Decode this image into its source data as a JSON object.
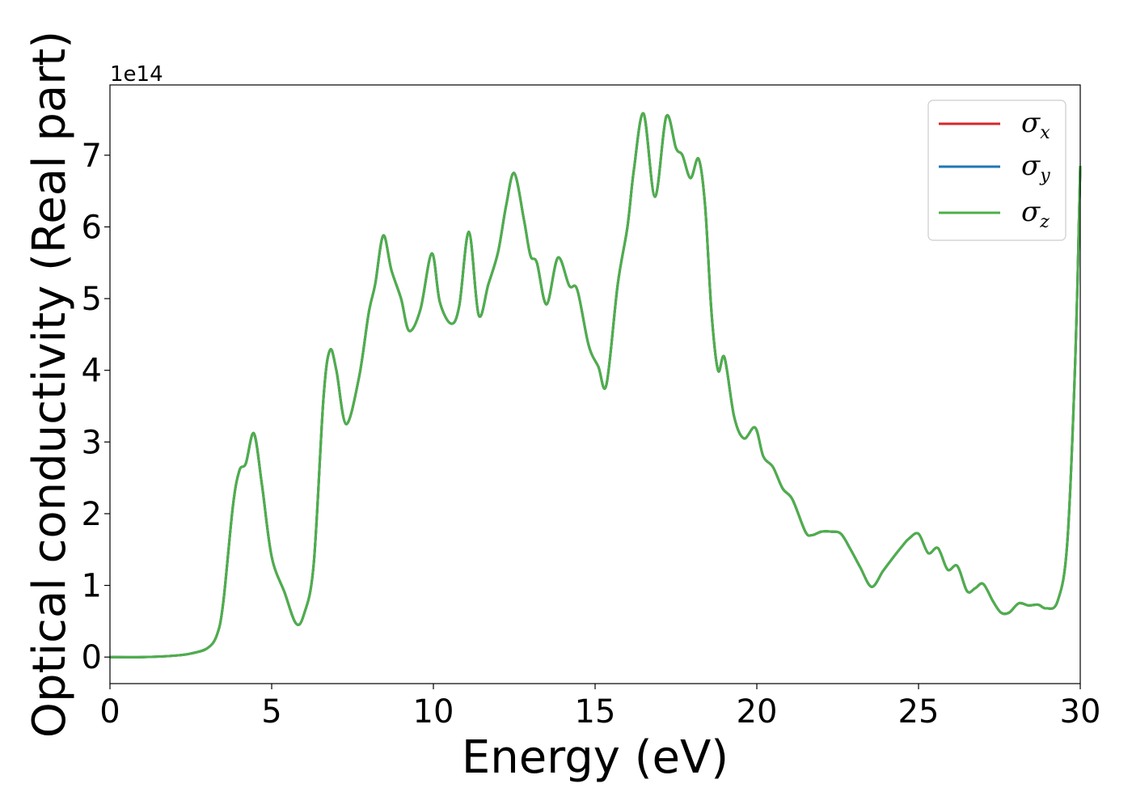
{
  "chart_data": {
    "type": "line",
    "title": "",
    "xlabel": "Energy (eV)",
    "ylabel": "Optical conductivity (Real part)",
    "y_offset_label": "1e14",
    "xlim": [
      0,
      30
    ],
    "ylim": [
      -0.37,
      7.98
    ],
    "xticks": [
      0,
      5,
      10,
      15,
      20,
      25,
      30
    ],
    "xtick_labels": [
      "0",
      "5",
      "10",
      "15",
      "20",
      "25",
      "30"
    ],
    "yticks": [
      0,
      1,
      2,
      3,
      4,
      5,
      6,
      7
    ],
    "ytick_labels": [
      "0",
      "1",
      "2",
      "3",
      "4",
      "5",
      "6",
      "7"
    ],
    "grid": false,
    "legend_position": "top-right",
    "x": [
      0,
      1,
      2,
      2.5,
      3,
      3.3,
      3.5,
      3.8,
      4.0,
      4.2,
      4.45,
      4.7,
      5.0,
      5.4,
      5.75,
      6.0,
      6.3,
      6.6,
      6.8,
      7.0,
      7.3,
      7.7,
      8.0,
      8.2,
      8.45,
      8.7,
      9.0,
      9.25,
      9.6,
      9.95,
      10.2,
      10.55,
      10.8,
      11.1,
      11.4,
      11.7,
      12.0,
      12.25,
      12.5,
      12.8,
      13.0,
      13.2,
      13.5,
      13.85,
      14.2,
      14.45,
      14.8,
      15.1,
      15.35,
      15.7,
      16.0,
      16.2,
      16.5,
      16.85,
      17.2,
      17.5,
      17.7,
      17.95,
      18.2,
      18.4,
      18.6,
      18.8,
      19.0,
      19.3,
      19.6,
      19.95,
      20.2,
      20.5,
      20.8,
      21.1,
      21.5,
      21.7,
      22.0,
      22.3,
      22.6,
      22.9,
      23.2,
      23.55,
      23.9,
      24.2,
      24.5,
      24.7,
      25.0,
      25.3,
      25.6,
      25.9,
      26.2,
      26.5,
      26.75,
      27.0,
      27.3,
      27.55,
      27.8,
      28.1,
      28.4,
      28.7,
      28.95,
      29.3,
      29.6,
      29.85,
      30.0
    ],
    "series": [
      {
        "name": "σx",
        "color": "#d62728",
        "y": [
          0.0,
          0.0,
          0.02,
          0.05,
          0.12,
          0.3,
          0.75,
          2.1,
          2.6,
          2.7,
          3.12,
          2.4,
          1.4,
          0.9,
          0.47,
          0.6,
          1.3,
          3.6,
          4.28,
          4.0,
          3.25,
          3.9,
          4.8,
          5.2,
          5.88,
          5.4,
          5.0,
          4.55,
          4.85,
          5.63,
          4.95,
          4.65,
          4.9,
          5.93,
          4.77,
          5.2,
          5.65,
          6.3,
          6.75,
          6.1,
          5.6,
          5.5,
          4.92,
          5.57,
          5.18,
          5.12,
          4.35,
          4.05,
          3.8,
          5.2,
          6.0,
          6.8,
          7.58,
          6.42,
          7.54,
          7.1,
          7.0,
          6.68,
          6.95,
          6.3,
          4.8,
          4.0,
          4.18,
          3.35,
          3.05,
          3.2,
          2.8,
          2.65,
          2.35,
          2.2,
          1.75,
          1.7,
          1.75,
          1.75,
          1.72,
          1.5,
          1.25,
          0.98,
          1.2,
          1.38,
          1.55,
          1.65,
          1.72,
          1.45,
          1.52,
          1.22,
          1.27,
          0.92,
          0.96,
          1.02,
          0.78,
          0.62,
          0.62,
          0.75,
          0.72,
          0.73,
          0.68,
          0.78,
          1.6,
          4.2,
          6.85
        ]
      },
      {
        "name": "σy",
        "color": "#1f77b4",
        "y": [
          0.0,
          0.0,
          0.02,
          0.05,
          0.12,
          0.3,
          0.75,
          2.1,
          2.6,
          2.7,
          3.12,
          2.4,
          1.4,
          0.9,
          0.47,
          0.6,
          1.3,
          3.6,
          4.28,
          4.0,
          3.25,
          3.9,
          4.8,
          5.2,
          5.88,
          5.4,
          5.0,
          4.55,
          4.85,
          5.63,
          4.95,
          4.65,
          4.9,
          5.93,
          4.77,
          5.2,
          5.65,
          6.3,
          6.75,
          6.1,
          5.6,
          5.5,
          4.92,
          5.57,
          5.18,
          5.12,
          4.35,
          4.05,
          3.8,
          5.2,
          6.0,
          6.8,
          7.58,
          6.42,
          7.54,
          7.1,
          7.0,
          6.68,
          6.95,
          6.3,
          4.8,
          4.0,
          4.18,
          3.35,
          3.05,
          3.2,
          2.8,
          2.65,
          2.35,
          2.2,
          1.75,
          1.7,
          1.75,
          1.75,
          1.72,
          1.5,
          1.25,
          0.98,
          1.2,
          1.38,
          1.55,
          1.65,
          1.72,
          1.45,
          1.52,
          1.22,
          1.27,
          0.92,
          0.96,
          1.02,
          0.78,
          0.62,
          0.62,
          0.75,
          0.72,
          0.73,
          0.68,
          0.78,
          1.6,
          4.2,
          6.85
        ]
      },
      {
        "name": "σz",
        "color": "#4daf4a",
        "y": [
          0.0,
          0.0,
          0.02,
          0.05,
          0.12,
          0.3,
          0.75,
          2.1,
          2.6,
          2.7,
          3.12,
          2.4,
          1.4,
          0.9,
          0.47,
          0.6,
          1.3,
          3.6,
          4.28,
          4.0,
          3.25,
          3.9,
          4.8,
          5.2,
          5.88,
          5.4,
          5.0,
          4.55,
          4.85,
          5.63,
          4.95,
          4.65,
          4.9,
          5.93,
          4.77,
          5.2,
          5.65,
          6.3,
          6.75,
          6.1,
          5.6,
          5.5,
          4.92,
          5.57,
          5.18,
          5.12,
          4.35,
          4.05,
          3.8,
          5.2,
          6.0,
          6.8,
          7.58,
          6.42,
          7.54,
          7.1,
          7.0,
          6.68,
          6.95,
          6.3,
          4.8,
          4.0,
          4.18,
          3.35,
          3.05,
          3.2,
          2.8,
          2.65,
          2.35,
          2.2,
          1.75,
          1.7,
          1.75,
          1.75,
          1.72,
          1.5,
          1.25,
          0.98,
          1.2,
          1.38,
          1.55,
          1.65,
          1.72,
          1.45,
          1.52,
          1.22,
          1.27,
          0.92,
          0.96,
          1.02,
          0.78,
          0.62,
          0.62,
          0.75,
          0.72,
          0.73,
          0.68,
          0.78,
          1.6,
          4.2,
          6.85
        ]
      }
    ],
    "legend": [
      {
        "symbol": "σ",
        "sub": "x"
      },
      {
        "symbol": "σ",
        "sub": "y"
      },
      {
        "symbol": "σ",
        "sub": "z"
      }
    ]
  }
}
